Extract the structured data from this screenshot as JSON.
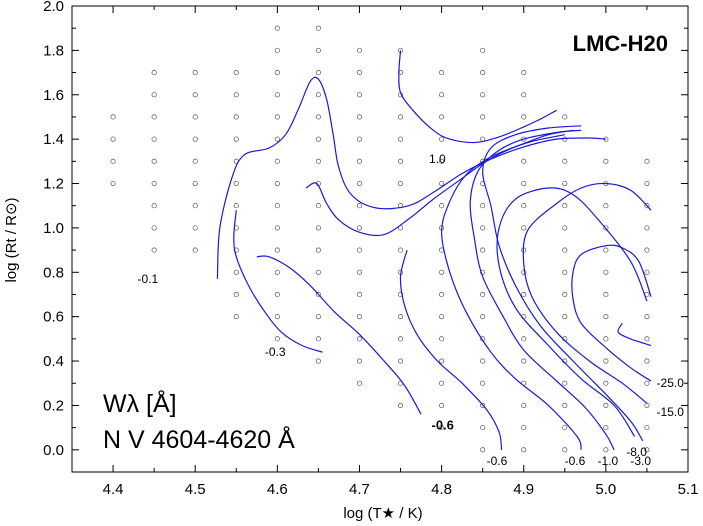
{
  "chart_data": {
    "type": "contour",
    "title": "LMC-H20",
    "xlabel": "log (T★ / K)",
    "ylabel": "log (Rt / R⊙)",
    "xlim": [
      4.35,
      5.1
    ],
    "ylim": [
      -0.1,
      2.0
    ],
    "xticks": [
      "4.4",
      "4.5",
      "4.6",
      "4.7",
      "4.8",
      "4.9",
      "5.0",
      "5.1"
    ],
    "yticks": [
      "0.0",
      "0.2",
      "0.4",
      "0.6",
      "0.8",
      "1.0",
      "1.2",
      "1.4",
      "1.6",
      "1.8",
      "2.0"
    ],
    "annotation": {
      "line1": "Wλ [Å]",
      "line2": "N V 4604-4620 Å"
    },
    "grid_points": [
      {
        "x": 4.4,
        "y": [
          1.2,
          1.3,
          1.4,
          1.5
        ]
      },
      {
        "x": 4.45,
        "y": [
          0.9,
          1.0,
          1.1,
          1.2,
          1.3,
          1.4,
          1.5,
          1.6,
          1.7
        ]
      },
      {
        "x": 4.5,
        "y": [
          0.9,
          1.0,
          1.1,
          1.2,
          1.3,
          1.4,
          1.5,
          1.6,
          1.7
        ]
      },
      {
        "x": 4.55,
        "y": [
          0.6,
          0.7,
          0.8,
          0.9,
          1.0,
          1.1,
          1.2,
          1.3,
          1.4,
          1.5,
          1.6,
          1.7
        ]
      },
      {
        "x": 4.6,
        "y": [
          0.5,
          0.6,
          0.7,
          0.8,
          0.9,
          1.0,
          1.1,
          1.2,
          1.3,
          1.4,
          1.5,
          1.6,
          1.7,
          1.8,
          1.9
        ]
      },
      {
        "x": 4.65,
        "y": [
          0.4,
          0.5,
          0.6,
          0.7,
          0.8,
          0.9,
          1.0,
          1.1,
          1.2,
          1.3,
          1.4,
          1.5,
          1.6,
          1.7,
          1.8,
          1.9
        ]
      },
      {
        "x": 4.7,
        "y": [
          0.3,
          0.4,
          0.5,
          0.6,
          0.7,
          0.8,
          0.9,
          1.0,
          1.1,
          1.2,
          1.3,
          1.4,
          1.5,
          1.6,
          1.7,
          1.8
        ]
      },
      {
        "x": 4.75,
        "y": [
          0.2,
          0.3,
          0.4,
          0.5,
          0.6,
          0.7,
          0.8,
          0.9,
          1.0,
          1.1,
          1.2,
          1.3,
          1.4,
          1.5,
          1.6,
          1.7,
          1.8
        ]
      },
      {
        "x": 4.8,
        "y": [
          0.1,
          0.2,
          0.3,
          0.4,
          0.5,
          0.6,
          0.7,
          0.8,
          0.9,
          1.0,
          1.1,
          1.2,
          1.3,
          1.4,
          1.5,
          1.6,
          1.7
        ]
      },
      {
        "x": 4.85,
        "y": [
          0.0,
          0.1,
          0.2,
          0.3,
          0.4,
          0.5,
          0.6,
          0.7,
          0.8,
          0.9,
          1.0,
          1.1,
          1.2,
          1.3,
          1.4,
          1.5,
          1.6,
          1.7,
          1.8
        ]
      },
      {
        "x": 4.9,
        "y": [
          0.0,
          0.1,
          0.2,
          0.3,
          0.4,
          0.5,
          0.6,
          0.7,
          0.8,
          0.9,
          1.0,
          1.1,
          1.2,
          1.3,
          1.4,
          1.5,
          1.6,
          1.7
        ]
      },
      {
        "x": 4.95,
        "y": [
          0.0,
          0.1,
          0.2,
          0.3,
          0.4,
          0.5,
          0.6,
          0.7,
          0.8,
          0.9,
          1.0,
          1.1,
          1.2,
          1.3,
          1.4,
          1.5
        ]
      },
      {
        "x": 5.0,
        "y": [
          0.0,
          0.1,
          0.2,
          0.3,
          0.4,
          0.5,
          0.6,
          0.7,
          0.8,
          0.9,
          1.0,
          1.1,
          1.2,
          1.3,
          1.4
        ]
      },
      {
        "x": 5.05,
        "y": [
          0.0,
          0.1,
          0.2,
          0.3,
          0.4,
          0.5,
          0.6,
          0.7,
          0.8,
          0.9,
          1.0,
          1.1,
          1.2,
          1.3
        ]
      }
    ],
    "contours": [
      {
        "label": "-0.1",
        "points": [
          [
            4.527,
            0.77
          ],
          [
            4.53,
            1.0
          ],
          [
            4.545,
            1.23
          ],
          [
            4.56,
            1.33
          ],
          [
            4.59,
            1.36
          ],
          [
            4.61,
            1.42
          ],
          [
            4.625,
            1.53
          ],
          [
            4.64,
            1.66
          ],
          [
            4.65,
            1.67
          ],
          [
            4.66,
            1.58
          ],
          [
            4.668,
            1.42
          ],
          [
            4.675,
            1.27
          ],
          [
            4.69,
            1.15
          ],
          [
            4.72,
            1.09
          ],
          [
            4.76,
            1.1
          ],
          [
            4.79,
            1.16
          ],
          [
            4.825,
            1.245
          ],
          [
            4.86,
            1.31
          ],
          [
            4.9,
            1.365
          ],
          [
            4.94,
            1.4
          ],
          [
            4.98,
            1.405
          ],
          [
            5.0,
            1.4
          ]
        ]
      },
      {
        "label": "1.0",
        "points": [
          [
            4.75,
            1.8
          ],
          [
            4.748,
            1.7
          ],
          [
            4.75,
            1.61
          ],
          [
            4.765,
            1.53
          ],
          [
            4.79,
            1.44
          ],
          [
            4.81,
            1.4
          ],
          [
            4.84,
            1.385
          ],
          [
            4.87,
            1.41
          ],
          [
            4.9,
            1.455
          ],
          [
            4.92,
            1.49
          ],
          [
            4.94,
            1.53
          ]
        ]
      },
      {
        "label": "-0.3",
        "points": [
          [
            4.55,
            1.08
          ],
          [
            4.547,
            0.96
          ],
          [
            4.55,
            0.87
          ],
          [
            4.565,
            0.74
          ],
          [
            4.585,
            0.62
          ],
          [
            4.605,
            0.53
          ],
          [
            4.63,
            0.47
          ],
          [
            4.655,
            0.44
          ]
        ]
      },
      {
        "label": "-0.6",
        "points": [
          [
            4.635,
            1.18
          ],
          [
            4.648,
            1.2
          ],
          [
            4.66,
            1.11
          ],
          [
            4.675,
            1.035
          ],
          [
            4.7,
            0.98
          ],
          [
            4.73,
            0.97
          ],
          [
            4.76,
            1.04
          ],
          [
            4.79,
            1.13
          ],
          [
            4.82,
            1.21
          ],
          [
            4.85,
            1.29
          ],
          [
            4.88,
            1.35
          ],
          [
            4.91,
            1.39
          ],
          [
            4.95,
            1.42
          ]
        ]
      },
      {
        "label": "-0.6",
        "points": [
          [
            4.575,
            0.87
          ],
          [
            4.59,
            0.87
          ],
          [
            4.615,
            0.82
          ],
          [
            4.64,
            0.74
          ],
          [
            4.67,
            0.62
          ],
          [
            4.7,
            0.52
          ],
          [
            4.73,
            0.4
          ],
          [
            4.755,
            0.29
          ],
          [
            4.775,
            0.16
          ]
        ]
      },
      {
        "label": "-0.6",
        "points": [
          [
            4.758,
            0.9
          ],
          [
            4.75,
            0.78
          ],
          [
            4.755,
            0.65
          ],
          [
            4.77,
            0.52
          ],
          [
            4.795,
            0.4
          ],
          [
            4.825,
            0.3
          ],
          [
            4.855,
            0.18
          ],
          [
            4.87,
            0.08
          ],
          [
            4.873,
            0.0
          ]
        ]
      },
      {
        "label": "-0.6",
        "points": [
          [
            4.96,
            1.44
          ],
          [
            4.93,
            1.42
          ],
          [
            4.9,
            1.38
          ],
          [
            4.86,
            1.32
          ],
          [
            4.83,
            1.24
          ],
          [
            4.81,
            1.12
          ],
          [
            4.8,
            0.98
          ],
          [
            4.81,
            0.8
          ],
          [
            4.83,
            0.62
          ],
          [
            4.86,
            0.44
          ],
          [
            4.89,
            0.32
          ],
          [
            4.93,
            0.2
          ],
          [
            4.965,
            0.06
          ],
          [
            4.97,
            0.0
          ]
        ]
      },
      {
        "label": "-1.0",
        "points": [
          [
            4.97,
            1.44
          ],
          [
            4.94,
            1.43
          ],
          [
            4.9,
            1.4
          ],
          [
            4.87,
            1.35
          ],
          [
            4.845,
            1.26
          ],
          [
            4.835,
            1.12
          ],
          [
            4.84,
            0.95
          ],
          [
            4.85,
            0.78
          ],
          [
            4.875,
            0.6
          ],
          [
            4.9,
            0.45
          ],
          [
            4.94,
            0.31
          ],
          [
            4.975,
            0.19
          ],
          [
            5.0,
            0.07
          ],
          [
            5.01,
            0.0
          ]
        ]
      },
      {
        "label": "-3.0",
        "points": [
          [
            4.97,
            1.46
          ],
          [
            4.93,
            1.45
          ],
          [
            4.89,
            1.42
          ],
          [
            4.86,
            1.36
          ],
          [
            4.85,
            1.25
          ],
          [
            4.86,
            1.1
          ],
          [
            4.87,
            0.92
          ],
          [
            4.89,
            0.74
          ],
          [
            4.92,
            0.56
          ],
          [
            4.96,
            0.4
          ],
          [
            5.0,
            0.25
          ],
          [
            5.03,
            0.13
          ],
          [
            5.045,
            0.04
          ]
        ]
      },
      {
        "label": "-8.0",
        "points": [
          [
            5.05,
            0.67
          ],
          [
            5.03,
            0.85
          ],
          [
            4.99,
            1.04
          ],
          [
            4.96,
            1.15
          ],
          [
            4.93,
            1.18
          ],
          [
            4.89,
            1.13
          ],
          [
            4.87,
            1.0
          ],
          [
            4.87,
            0.83
          ],
          [
            4.89,
            0.64
          ],
          [
            4.93,
            0.47
          ],
          [
            4.97,
            0.32
          ],
          [
            5.01,
            0.2
          ],
          [
            5.035,
            0.06
          ]
        ]
      },
      {
        "label": "-15.0",
        "points": [
          [
            5.055,
            1.08
          ],
          [
            5.03,
            1.17
          ],
          [
            5.0,
            1.2
          ],
          [
            4.97,
            1.18
          ],
          [
            4.94,
            1.11
          ],
          [
            4.905,
            0.99
          ],
          [
            4.9,
            0.84
          ],
          [
            4.91,
            0.69
          ],
          [
            4.94,
            0.53
          ],
          [
            4.98,
            0.4
          ],
          [
            5.02,
            0.3
          ],
          [
            5.05,
            0.21
          ]
        ]
      },
      {
        "label": "-25.0",
        "points": [
          [
            5.055,
            0.69
          ],
          [
            5.04,
            0.85
          ],
          [
            5.02,
            0.91
          ],
          [
            5.0,
            0.92
          ],
          [
            4.97,
            0.88
          ],
          [
            4.96,
            0.8
          ],
          [
            4.96,
            0.68
          ],
          [
            4.97,
            0.57
          ],
          [
            5.0,
            0.46
          ],
          [
            5.03,
            0.37
          ],
          [
            5.055,
            0.31
          ]
        ]
      },
      {
        "label": "-25.0",
        "points": [
          [
            5.055,
            0.47
          ],
          [
            5.03,
            0.5
          ],
          [
            5.015,
            0.53
          ],
          [
            5.02,
            0.57
          ]
        ]
      }
    ],
    "contour_labels": [
      {
        "text": "-0.1",
        "x": 4.455,
        "y": 0.77,
        "bold": false
      },
      {
        "text": "1.0",
        "x": 4.805,
        "y": 1.31,
        "bold": false
      },
      {
        "text": "-0.3",
        "x": 4.61,
        "y": 0.44,
        "bold": false
      },
      {
        "text": "-0.6",
        "x": 4.815,
        "y": 0.11,
        "bold": true
      },
      {
        "text": "-0.6",
        "x": 4.88,
        "y": -0.05,
        "bold": false
      },
      {
        "text": "-0.6",
        "x": 4.975,
        "y": -0.05,
        "bold": false
      },
      {
        "text": "-1.0",
        "x": 5.015,
        "y": -0.05,
        "bold": false
      },
      {
        "text": "-3.0",
        "x": 5.055,
        "y": -0.05,
        "bold": false
      },
      {
        "text": "-8.0",
        "x": 5.05,
        "y": -0.01,
        "bold": false
      },
      {
        "text": "-15.0",
        "x": 5.095,
        "y": 0.17,
        "bold": false
      },
      {
        "text": "-25.0",
        "x": 5.095,
        "y": 0.3,
        "bold": false
      }
    ]
  }
}
